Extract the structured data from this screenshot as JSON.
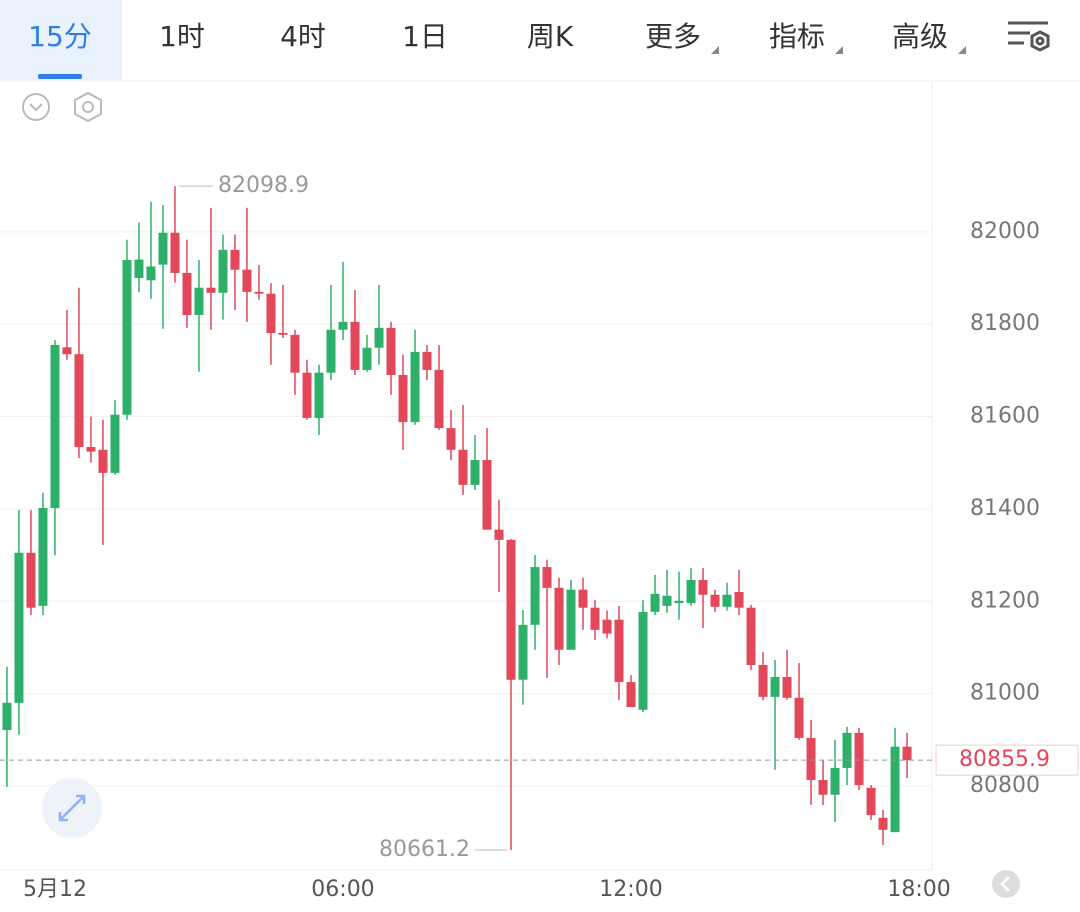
{
  "tabs": [
    "15分",
    "1时",
    "4时",
    "1日",
    "周K",
    "更多",
    "指标",
    "高级"
  ],
  "selected_tab": 0,
  "chart_data": {
    "type": "candlestick",
    "categories": [
      null,
      null,
      null,
      null,
      null,
      null,
      null,
      null,
      null,
      null,
      null,
      null,
      null,
      null,
      null,
      null,
      null,
      null,
      null,
      null,
      null,
      null,
      null,
      null,
      null,
      null,
      null,
      null,
      null,
      null,
      null,
      null,
      null,
      null,
      null,
      null,
      null,
      null,
      null,
      null,
      null,
      null,
      null,
      null,
      null,
      null,
      null,
      null,
      null,
      null,
      null,
      null,
      null,
      null,
      null,
      null,
      null,
      null,
      null,
      null,
      null,
      null,
      null,
      null,
      null,
      null,
      null,
      null,
      null,
      null,
      null,
      null,
      null,
      null,
      null,
      null
    ],
    "open": [
      80921,
      80980,
      81305,
      81190,
      81402,
      81750,
      81735,
      81534,
      81528,
      81478,
      81604,
      81900,
      81895,
      81929,
      81998,
      81911,
      81820,
      81879,
      81868,
      81961,
      81918,
      81870,
      81866,
      81781,
      81777,
      81695,
      81597,
      81695,
      81788,
      81805,
      81701,
      81749,
      81792,
      81690,
      81588,
      81740,
      81701,
      81575,
      81528,
      81452,
      81506,
      81355,
      81333,
      81030,
      81149,
      81274,
      81229,
      81095,
      81225,
      81186,
      81160,
      81160,
      81025,
      80965,
      81177,
      81190,
      81196,
      81196,
      81246,
      81214,
      81188,
      81220,
      81186,
      81062,
      80993,
      81036,
      80991,
      80904,
      80813,
      80781,
      80839,
      80915,
      80796,
      80731,
      80700,
      80885
    ],
    "high": [
      81058,
      81398,
      81398,
      81435,
      81766,
      81831,
      81879,
      81600,
      81593,
      81636,
      81983,
      82020,
      82065,
      82058,
      82098.9,
      81983,
      81939,
      82052,
      81994,
      81994,
      82052,
      81928,
      81889,
      81885,
      81788,
      81723,
      81712,
      81885,
      81935,
      81874,
      81777,
      81885,
      81805,
      81734,
      81788,
      81755,
      81755,
      81614,
      81625,
      81560,
      81575,
      81420,
      81335,
      81181,
      81300,
      81290,
      81251,
      81246,
      81251,
      81203,
      81180,
      81190,
      81040,
      81203,
      81257,
      81268,
      81264,
      81272,
      81272,
      81225,
      81240,
      81268,
      81192,
      81090,
      81073,
      81095,
      81066,
      80943,
      80856,
      80900,
      80928,
      80926,
      80802,
      80748,
      80926,
      80915
    ],
    "low": [
      80798,
      80911,
      81170,
      81170,
      81300,
      81723,
      81510,
      81500,
      81322,
      81474,
      81593,
      81870,
      81855,
      81790,
      81890,
      81792,
      81697,
      81788,
      81810,
      81831,
      81805,
      81853,
      81712,
      81770,
      81647,
      81593,
      81560,
      81679,
      81766,
      81690,
      81697,
      81712,
      81647,
      81528,
      81582,
      81679,
      81571,
      81506,
      81430,
      81441,
      81355,
      81220,
      80661.2,
      80976,
      81095,
      81034,
      81062,
      81095,
      81138,
      81116,
      81120,
      80986,
      80971,
      80960,
      81170,
      81175,
      81160,
      81190,
      81142,
      81177,
      81180,
      81170,
      81051,
      80986,
      80835,
      80987,
      80900,
      80759,
      80759,
      80722,
      80802,
      80791,
      80726,
      80672,
      80700,
      80817
    ],
    "close": [
      80980,
      81305,
      81186,
      81402,
      81755,
      81735,
      81534,
      81524,
      81478,
      81604,
      81939,
      81940,
      81925,
      81998,
      81911,
      81820,
      81879,
      81868,
      81961,
      81918,
      81870,
      81866,
      81781,
      81777,
      81695,
      81597,
      81695,
      81788,
      81805,
      81701,
      81749,
      81792,
      81690,
      81588,
      81740,
      81701,
      81575,
      81528,
      81452,
      81506,
      81355,
      81333,
      81030,
      81149,
      81274,
      81229,
      81095,
      81225,
      81186,
      81138,
      81130,
      81025,
      80971,
      81177,
      81216,
      81212,
      81201,
      81246,
      81214,
      81188,
      81214,
      81186,
      81062,
      80993,
      81036,
      80991,
      80904,
      80813,
      80781,
      80839,
      80915,
      80802,
      80737,
      80705,
      80885,
      80855.9
    ],
    "up_color": "#2eb06b",
    "down_color": "#e2475a",
    "xlim": [
      -0.58,
      77.08
    ],
    "ylim": [
      80618,
      82318
    ],
    "yticks": [
      80800,
      81000,
      81200,
      81400,
      81600,
      81800,
      82000
    ],
    "xticks": [
      {
        "value": 4,
        "label": "5月12"
      },
      {
        "value": 28,
        "label": "06:00"
      },
      {
        "value": 52,
        "label": "12:00"
      },
      {
        "value": 76,
        "label": "18:00"
      }
    ],
    "grid": true
  }
}
